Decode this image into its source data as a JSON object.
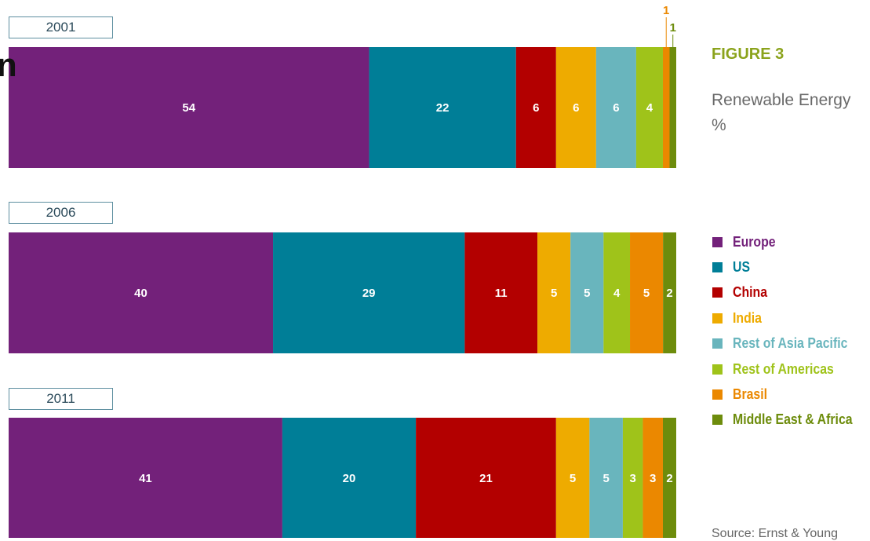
{
  "figure": {
    "title": "FIGURE 3",
    "subtitle_line1": "Renewable Energy",
    "subtitle_line2": "%",
    "source": "Source: Ernst & Young",
    "cut_glyph": "n"
  },
  "chart_data": {
    "type": "bar",
    "orientation": "horizontal-stacked",
    "xlim": [
      0,
      100
    ],
    "categories": [
      "2001",
      "2006",
      "2011"
    ],
    "series": [
      {
        "name": "Europe",
        "color": "#73217a",
        "values": [
          54,
          40,
          41
        ]
      },
      {
        "name": "US",
        "color": "#007e97",
        "values": [
          22,
          29,
          20
        ]
      },
      {
        "name": "China",
        "color": "#b30000",
        "values": [
          6,
          11,
          21
        ]
      },
      {
        "name": "India",
        "color": "#eeab00",
        "values": [
          6,
          5,
          5
        ]
      },
      {
        "name": "Rest of Asia Pacific",
        "color": "#69b5bd",
        "values": [
          6,
          5,
          5
        ]
      },
      {
        "name": "Rest of Americas",
        "color": "#9fc31a",
        "values": [
          4,
          4,
          3
        ]
      },
      {
        "name": "Brasil",
        "color": "#eb8800",
        "values": [
          1,
          5,
          3
        ]
      },
      {
        "name": "Middle East & Africa",
        "color": "#6d8c0c",
        "values": [
          1,
          2,
          2
        ]
      }
    ],
    "legend_position": "right"
  }
}
